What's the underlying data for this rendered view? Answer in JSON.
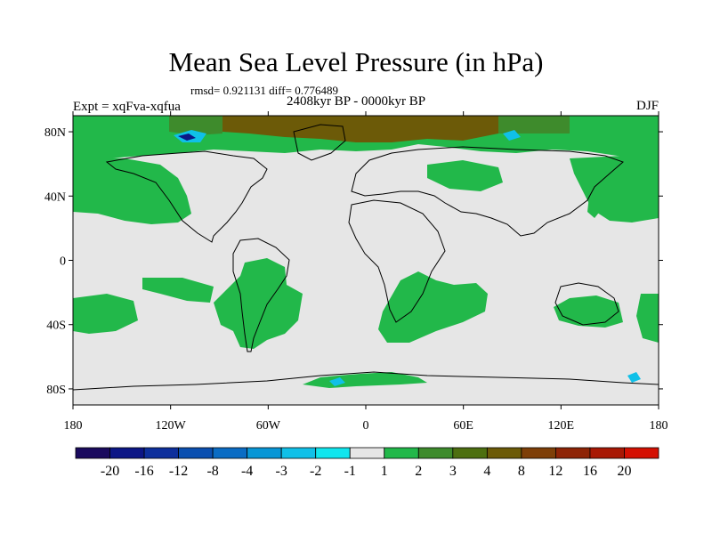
{
  "title": "Mean Sea Level Pressure (in hPa)",
  "stats_line": "rmsd= 0.921131 diff= 0.776489",
  "period": "2408kyr BP - 0000kyr BP",
  "experiment": "Expt = xqFva-xqfua",
  "season": "DJF",
  "lat_ticks": [
    "80N",
    "40N",
    "0",
    "40S",
    "80S"
  ],
  "lat_values": [
    80,
    40,
    0,
    -40,
    -80
  ],
  "lon_ticks": [
    "180",
    "120W",
    "60W",
    "0",
    "60E",
    "120E",
    "180"
  ],
  "lon_values": [
    -180,
    -120,
    -60,
    0,
    60,
    120,
    180
  ],
  "colorbar": {
    "labels": [
      "-20",
      "-16",
      "-12",
      "-8",
      "-4",
      "-3",
      "-2",
      "-1",
      "1",
      "2",
      "3",
      "4",
      "8",
      "12",
      "16",
      "20"
    ],
    "colors": [
      "#1a0a5e",
      "#0c1686",
      "#0d2f9c",
      "#0a4fb0",
      "#0a6cc4",
      "#0896d6",
      "#10c0e8",
      "#10e6ee",
      "#e6e6e6",
      "#22b84a",
      "#3e8b2c",
      "#4d6f10",
      "#6c5a08",
      "#7e3f08",
      "#8e2406",
      "#a81804",
      "#d41002"
    ]
  },
  "colors": {
    "background_field": "#e6e6e6",
    "positive_1_2": "#22b84a",
    "positive_2_3": "#3e8b2c",
    "positive_4_8": "#6c5a08",
    "negative": "#10c0e8"
  }
}
